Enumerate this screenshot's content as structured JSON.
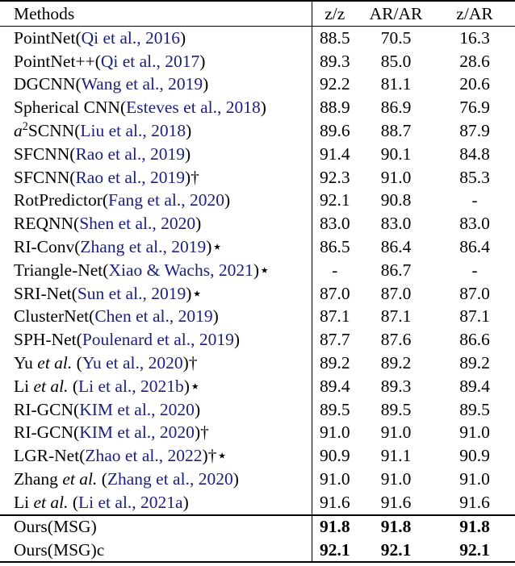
{
  "table": {
    "cite_color": "#1b1f80",
    "columns": [
      "Methods",
      "z/z",
      "AR/AR",
      "z/AR"
    ],
    "rows": [
      {
        "method": [
          {
            "t": "PointNet(",
            "s": "plain"
          },
          {
            "t": "Qi et al., 2016",
            "s": "cite"
          },
          {
            "t": ")",
            "s": "plain"
          }
        ],
        "values": [
          "88.5",
          "70.5",
          "16.3"
        ],
        "bold": false
      },
      {
        "method": [
          {
            "t": "PointNet++(",
            "s": "plain"
          },
          {
            "t": "Qi et al., 2017",
            "s": "cite"
          },
          {
            "t": ")",
            "s": "plain"
          }
        ],
        "values": [
          "89.3",
          "85.0",
          "28.6"
        ],
        "bold": false
      },
      {
        "method": [
          {
            "t": "DGCNN(",
            "s": "plain"
          },
          {
            "t": "Wang et al., 2019",
            "s": "cite"
          },
          {
            "t": ")",
            "s": "plain"
          }
        ],
        "values": [
          "92.2",
          "81.1",
          "20.6"
        ],
        "bold": false
      },
      {
        "method": [
          {
            "t": "Spherical CNN(",
            "s": "plain"
          },
          {
            "t": "Esteves et al., 2018",
            "s": "cite"
          },
          {
            "t": ")",
            "s": "plain"
          }
        ],
        "values": [
          "88.9",
          "86.9",
          "76.9"
        ],
        "bold": false
      },
      {
        "method": [
          {
            "t": "a",
            "s": "italic"
          },
          {
            "t": "2",
            "s": "sup"
          },
          {
            "t": "SCNN(",
            "s": "plain"
          },
          {
            "t": "Liu et al., 2018",
            "s": "cite"
          },
          {
            "t": ")",
            "s": "plain"
          }
        ],
        "values": [
          "89.6",
          "88.7",
          "87.9"
        ],
        "bold": false
      },
      {
        "method": [
          {
            "t": "SFCNN(",
            "s": "plain"
          },
          {
            "t": "Rao et al., 2019",
            "s": "cite"
          },
          {
            "t": ")",
            "s": "plain"
          }
        ],
        "values": [
          "91.4",
          "90.1",
          "84.8"
        ],
        "bold": false
      },
      {
        "method": [
          {
            "t": "SFCNN(",
            "s": "plain"
          },
          {
            "t": "Rao et al., 2019",
            "s": "cite"
          },
          {
            "t": ")†",
            "s": "plain"
          }
        ],
        "values": [
          "92.3",
          "91.0",
          "85.3"
        ],
        "bold": false
      },
      {
        "method": [
          {
            "t": "RotPredictor(",
            "s": "plain"
          },
          {
            "t": "Fang et al., 2020",
            "s": "cite"
          },
          {
            "t": ")",
            "s": "plain"
          }
        ],
        "values": [
          "92.1",
          "90.8",
          "-"
        ],
        "bold": false
      },
      {
        "method": [
          {
            "t": "REQNN(",
            "s": "plain"
          },
          {
            "t": "Shen et al., 2020",
            "s": "cite"
          },
          {
            "t": ")",
            "s": "plain"
          }
        ],
        "values": [
          "83.0",
          "83.0",
          "83.0"
        ],
        "bold": false
      },
      {
        "method": [
          {
            "t": "RI-Conv(",
            "s": "plain"
          },
          {
            "t": "Zhang et al., 2019",
            "s": "cite"
          },
          {
            "t": ")⋆",
            "s": "plain"
          }
        ],
        "values": [
          "86.5",
          "86.4",
          "86.4"
        ],
        "bold": false
      },
      {
        "method": [
          {
            "t": "Triangle-Net(",
            "s": "plain"
          },
          {
            "t": "Xiao & Wachs, 2021",
            "s": "cite"
          },
          {
            "t": ")⋆",
            "s": "plain"
          }
        ],
        "values": [
          "-",
          "86.7",
          "-"
        ],
        "bold": false
      },
      {
        "method": [
          {
            "t": "SRI-Net(",
            "s": "plain"
          },
          {
            "t": "Sun et al., 2019",
            "s": "cite"
          },
          {
            "t": ")⋆",
            "s": "plain"
          }
        ],
        "values": [
          "87.0",
          "87.0",
          "87.0"
        ],
        "bold": false
      },
      {
        "method": [
          {
            "t": "ClusterNet(",
            "s": "plain"
          },
          {
            "t": "Chen et al., 2019",
            "s": "cite"
          },
          {
            "t": ")",
            "s": "plain"
          }
        ],
        "values": [
          "87.1",
          "87.1",
          "87.1"
        ],
        "bold": false
      },
      {
        "method": [
          {
            "t": "SPH-Net(",
            "s": "plain"
          },
          {
            "t": "Poulenard et al., 2019",
            "s": "cite"
          },
          {
            "t": ")",
            "s": "plain"
          }
        ],
        "values": [
          "87.7",
          "87.6",
          "86.6"
        ],
        "bold": false
      },
      {
        "method": [
          {
            "t": "Yu ",
            "s": "plain"
          },
          {
            "t": "et al.",
            "s": "italic"
          },
          {
            "t": " (",
            "s": "plain"
          },
          {
            "t": "Yu et al., 2020",
            "s": "cite"
          },
          {
            "t": ")†",
            "s": "plain"
          }
        ],
        "values": [
          "89.2",
          "89.2",
          "89.2"
        ],
        "bold": false
      },
      {
        "method": [
          {
            "t": "Li ",
            "s": "plain"
          },
          {
            "t": "et al.",
            "s": "italic"
          },
          {
            "t": " (",
            "s": "plain"
          },
          {
            "t": "Li et al., 2021b",
            "s": "cite"
          },
          {
            "t": ")⋆",
            "s": "plain"
          }
        ],
        "values": [
          "89.4",
          "89.3",
          "89.4"
        ],
        "bold": false
      },
      {
        "method": [
          {
            "t": "RI-GCN(",
            "s": "plain"
          },
          {
            "t": "KIM et al., 2020",
            "s": "cite"
          },
          {
            "t": ")",
            "s": "plain"
          }
        ],
        "values": [
          "89.5",
          "89.5",
          "89.5"
        ],
        "bold": false
      },
      {
        "method": [
          {
            "t": "RI-GCN(",
            "s": "plain"
          },
          {
            "t": "KIM et al., 2020",
            "s": "cite"
          },
          {
            "t": ")†",
            "s": "plain"
          }
        ],
        "values": [
          "91.0",
          "91.0",
          "91.0"
        ],
        "bold": false
      },
      {
        "method": [
          {
            "t": "LGR-Net(",
            "s": "plain"
          },
          {
            "t": "Zhao et al., 2022",
            "s": "cite"
          },
          {
            "t": ")†⋆",
            "s": "plain"
          }
        ],
        "values": [
          "90.9",
          "91.1",
          "90.9"
        ],
        "bold": false
      },
      {
        "method": [
          {
            "t": "Zhang ",
            "s": "plain"
          },
          {
            "t": "et al.",
            "s": "italic"
          },
          {
            "t": " (",
            "s": "plain"
          },
          {
            "t": "Zhang et al., 2020",
            "s": "cite"
          },
          {
            "t": ")",
            "s": "plain"
          }
        ],
        "values": [
          "91.0",
          "91.0",
          "91.0"
        ],
        "bold": false
      },
      {
        "method": [
          {
            "t": "Li ",
            "s": "plain"
          },
          {
            "t": "et al.",
            "s": "italic"
          },
          {
            "t": " (",
            "s": "plain"
          },
          {
            "t": "Li et al., 2021a",
            "s": "cite"
          },
          {
            "t": ")",
            "s": "plain"
          }
        ],
        "values": [
          "91.6",
          "91.6",
          "91.6"
        ],
        "bold": false
      },
      {
        "method": [
          {
            "t": "Ours(MSG)",
            "s": "plain"
          }
        ],
        "values": [
          "91.8",
          "91.8",
          "91.8"
        ],
        "bold": true
      },
      {
        "method": [
          {
            "t": "Ours(MSG)c",
            "s": "plain"
          }
        ],
        "values": [
          "92.1",
          "92.1",
          "92.1"
        ],
        "bold": true
      }
    ]
  }
}
